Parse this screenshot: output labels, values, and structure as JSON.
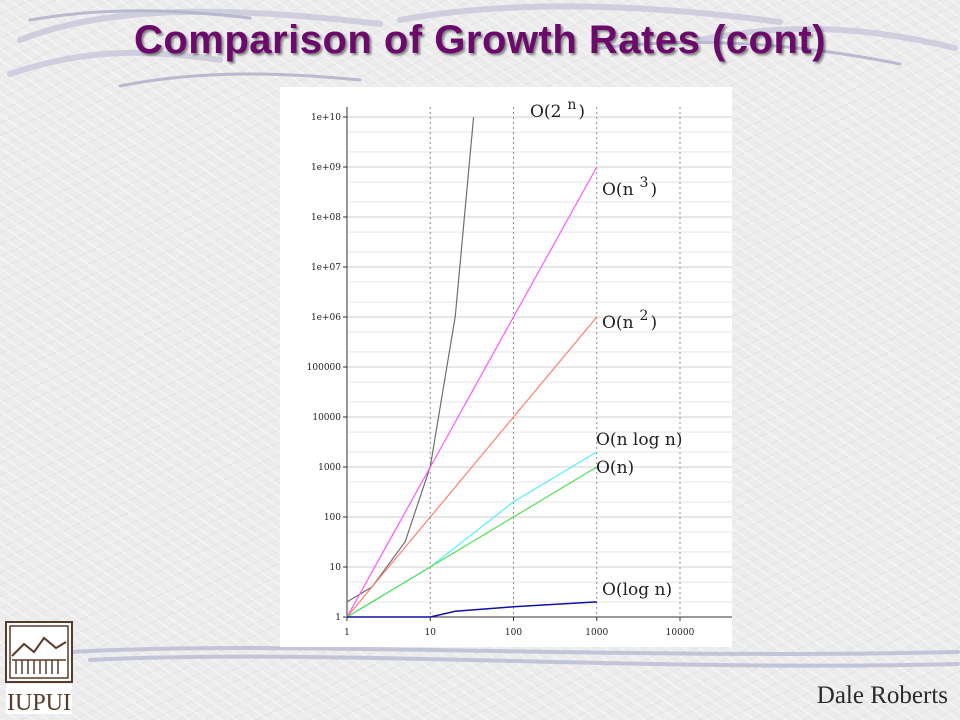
{
  "slide": {
    "title": "Comparison of Growth Rates (cont)",
    "author": "Dale Roberts",
    "logo_text": "IUPUI"
  },
  "colors": {
    "title": "#6b0a6b",
    "O(2^n)": "#6e6e6e",
    "O(n^3)": "#ff55ff",
    "O(n^2)": "#ff7f6e",
    "O(n log n)": "#55eeff",
    "O(n)": "#55dd55",
    "O(log n)": "#1010aa"
  },
  "chart_data": {
    "type": "line",
    "xscale": "log",
    "yscale": "log",
    "xlim": [
      1,
      10000
    ],
    "ylim": [
      1,
      10000000000
    ],
    "grid": true,
    "xticks": [
      1,
      10,
      100,
      1000,
      10000
    ],
    "xtick_labels": [
      "1",
      "10",
      "100",
      "1000",
      "10000"
    ],
    "yticks": [
      1,
      10,
      100,
      1000,
      10000,
      100000,
      1000000,
      10000000,
      100000000,
      1000000000,
      10000000000
    ],
    "ytick_labels": [
      "1",
      "10",
      "100",
      "1000",
      "10000",
      "100000",
      "1e+06",
      "1e+07",
      "1e+08",
      "1e+09",
      "1e+10"
    ],
    "series": [
      {
        "key": "O(2^n)",
        "label_main": "O(2",
        "label_sup": "n",
        "label_close": ")",
        "x": [
          1,
          2,
          5,
          10,
          20,
          33.2
        ],
        "y": [
          2,
          4,
          32,
          1024,
          1048576,
          10000000000
        ]
      },
      {
        "key": "O(n^3)",
        "label_main": "O(n",
        "label_sup": "3",
        "label_close": ")",
        "x": [
          1,
          10,
          100,
          1000
        ],
        "y": [
          1,
          1000,
          1000000,
          1000000000
        ]
      },
      {
        "key": "O(n^2)",
        "label_main": "O(n",
        "label_sup": "2",
        "label_close": ")",
        "x": [
          1,
          10,
          100,
          1000
        ],
        "y": [
          1,
          100,
          10000,
          1000000
        ]
      },
      {
        "key": "O(n log n)",
        "label_main": "O(n log n)",
        "label_sup": "",
        "label_close": "",
        "x": [
          1,
          10,
          100,
          1000
        ],
        "y": [
          1,
          10,
          200,
          2000
        ]
      },
      {
        "key": "O(n)",
        "label_main": "O(n)",
        "label_sup": "",
        "label_close": "",
        "x": [
          1,
          10,
          100,
          1000
        ],
        "y": [
          1,
          10,
          100,
          1000
        ]
      },
      {
        "key": "O(log n)",
        "label_main": "O(log n)",
        "label_sup": "",
        "label_close": "",
        "x": [
          1,
          10,
          20,
          100,
          1000
        ],
        "y": [
          1,
          1,
          1.3,
          1.6,
          2
        ]
      }
    ]
  }
}
